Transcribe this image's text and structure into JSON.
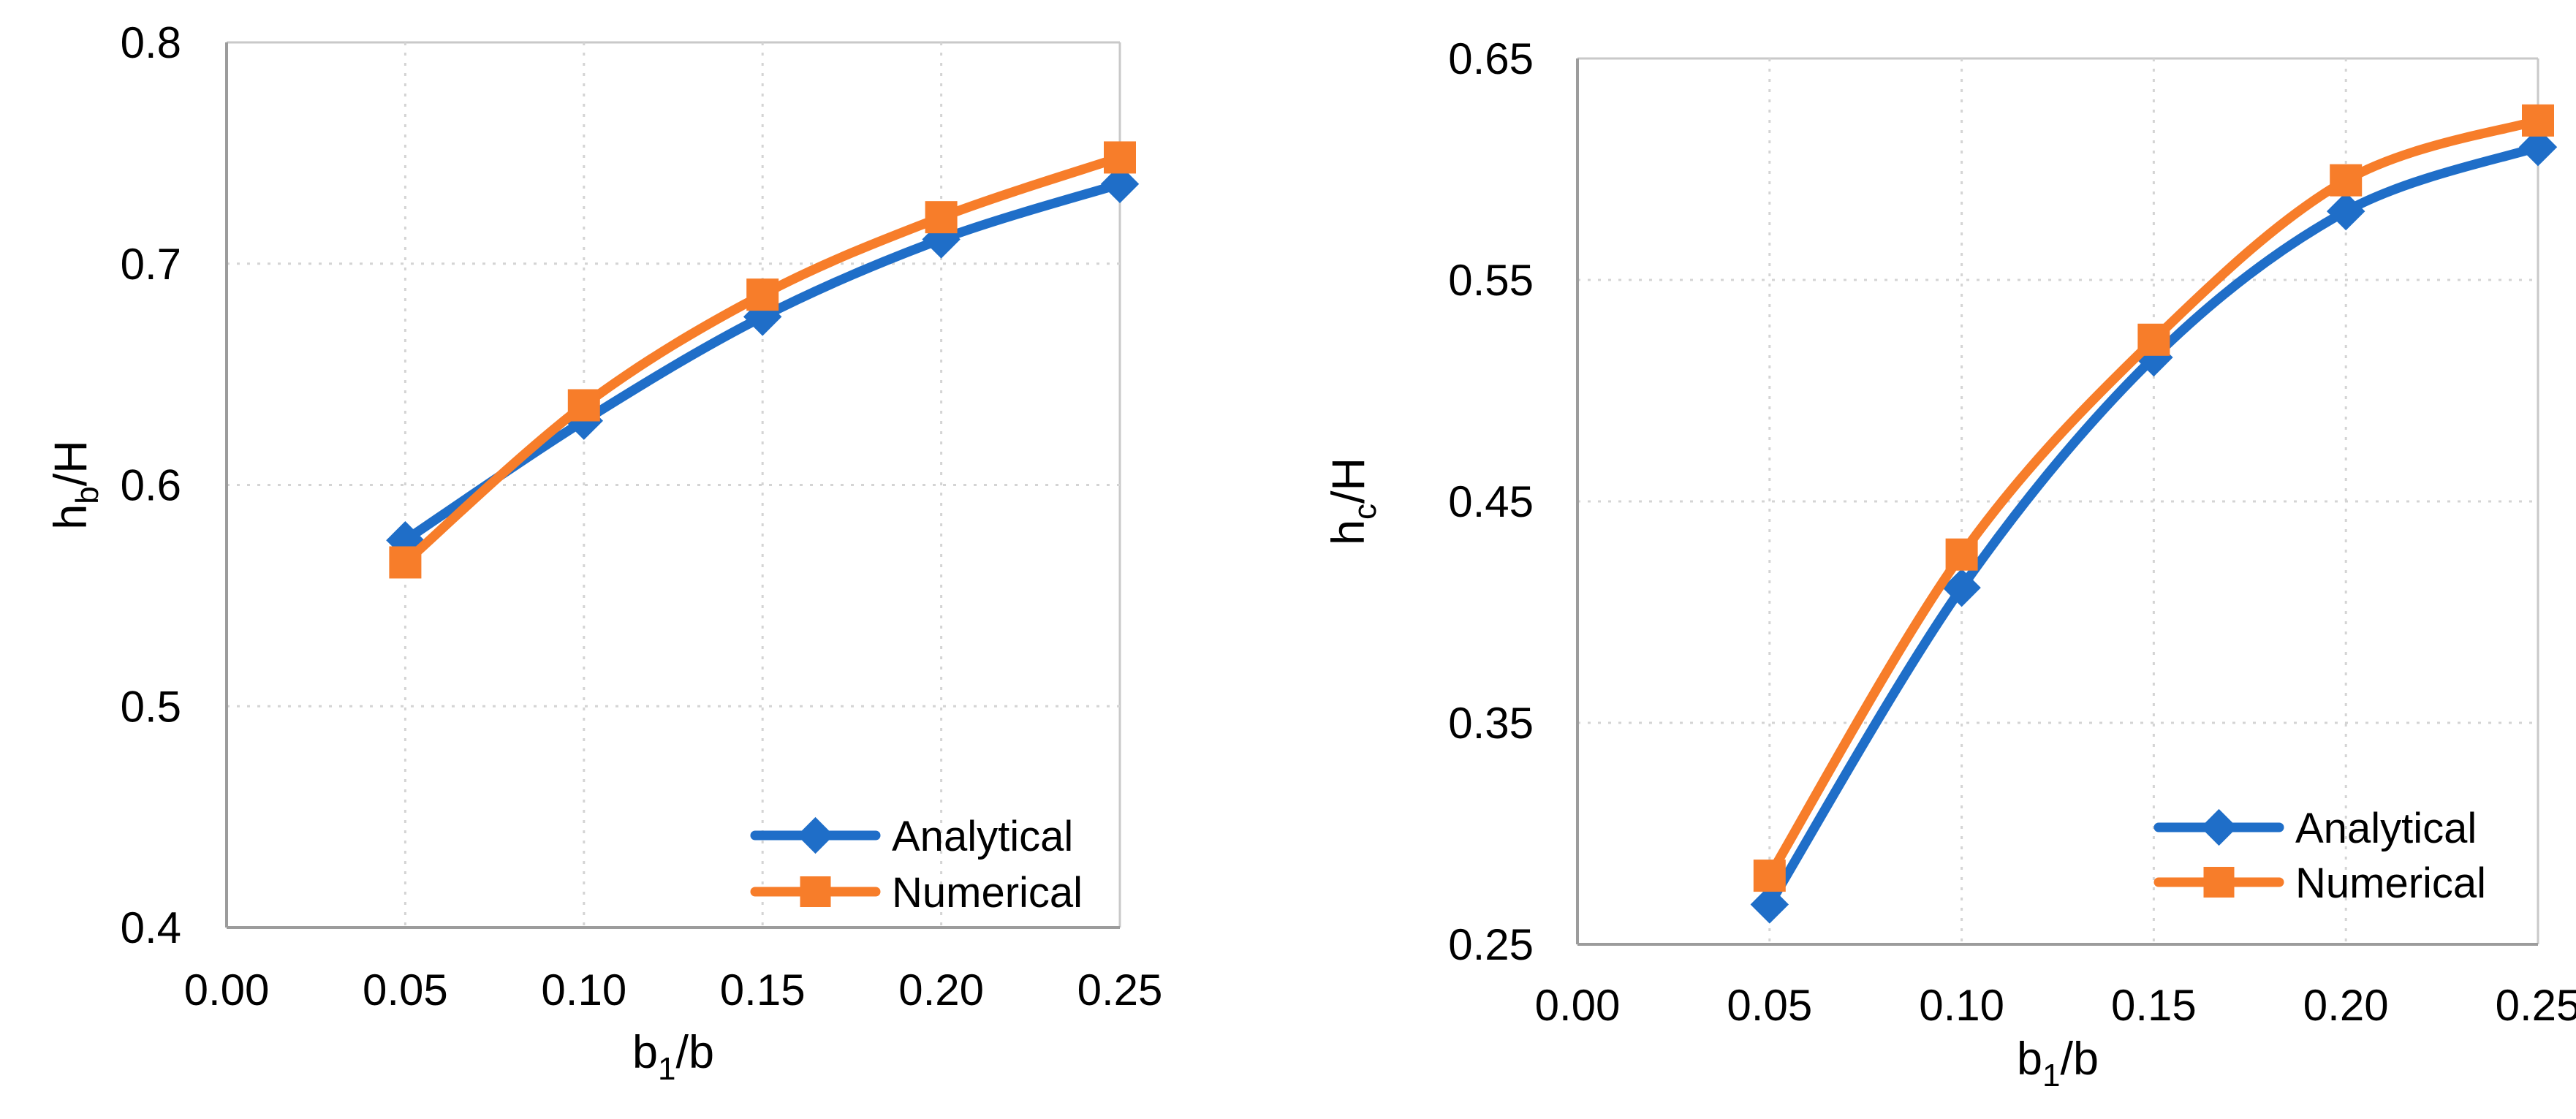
{
  "figure": {
    "background": "#ffffff",
    "panels": 2
  },
  "colors": {
    "analytical": "#1f6ec8",
    "numerical": "#f77d2a",
    "gridline": "#d4d4d4",
    "plot_border": "#c9c9c9",
    "axis_line": "#9c9c9c",
    "text": "#000000"
  },
  "chart_data": [
    {
      "type": "line",
      "title": "",
      "xlabel": "b1/b",
      "xlabel_parts": {
        "base": "b",
        "sub": "1",
        "rest": "/b"
      },
      "ylabel": "hb/H",
      "ylabel_parts": {
        "base": "h",
        "sub": "b",
        "rest": "/H"
      },
      "x": [
        0.05,
        0.1,
        0.15,
        0.2,
        0.25
      ],
      "series": [
        {
          "name": "Analytical",
          "marker": "diamond",
          "color": "#1f6ec8",
          "values": [
            0.575,
            0.629,
            0.676,
            0.711,
            0.736
          ]
        },
        {
          "name": "Numerical",
          "marker": "square",
          "color": "#f77d2a",
          "values": [
            0.565,
            0.636,
            0.686,
            0.721,
            0.748
          ]
        }
      ],
      "xlim": [
        0.0,
        0.25
      ],
      "ylim": [
        0.4,
        0.8
      ],
      "x_ticks": [
        "0.00",
        "0.05",
        "0.10",
        "0.15",
        "0.20",
        "0.25"
      ],
      "y_ticks": [
        "0.4",
        "0.5",
        "0.6",
        "0.7",
        "0.8"
      ],
      "grid": true,
      "smooth": true,
      "legend_position": "lower right",
      "legend_entries": [
        "Analytical",
        "Numerical"
      ]
    },
    {
      "type": "line",
      "title": "",
      "xlabel": "b1/b",
      "xlabel_parts": {
        "base": "b",
        "sub": "1",
        "rest": "/b"
      },
      "ylabel": "hc/H",
      "ylabel_parts": {
        "base": "h",
        "sub": "c",
        "rest": "/H"
      },
      "x": [
        0.05,
        0.1,
        0.15,
        0.2,
        0.25
      ],
      "series": [
        {
          "name": "Analytical",
          "marker": "diamond",
          "color": "#1f6ec8",
          "values": [
            0.268,
            0.411,
            0.515,
            0.581,
            0.61
          ]
        },
        {
          "name": "Numerical",
          "marker": "square",
          "color": "#f77d2a",
          "values": [
            0.281,
            0.426,
            0.523,
            0.595,
            0.622
          ]
        }
      ],
      "xlim": [
        0.0,
        0.25
      ],
      "ylim": [
        0.25,
        0.65
      ],
      "x_ticks": [
        "0.00",
        "0.05",
        "0.10",
        "0.15",
        "0.20",
        "0.25"
      ],
      "y_ticks": [
        "0.25",
        "0.35",
        "0.45",
        "0.55",
        "0.65"
      ],
      "grid": true,
      "smooth": true,
      "legend_position": "lower right",
      "legend_entries": [
        "Analytical",
        "Numerical"
      ]
    }
  ]
}
